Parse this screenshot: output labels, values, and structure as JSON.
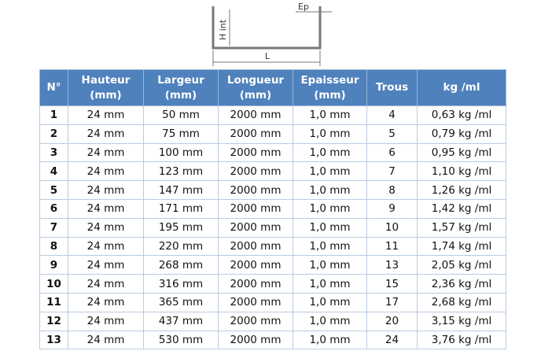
{
  "diagram": {
    "height_label": "H int",
    "length_label": "L",
    "thickness_label": "Ep"
  },
  "table": {
    "header": [
      [
        "N°"
      ],
      [
        "Hauteur",
        "(mm)"
      ],
      [
        "Largeur",
        "(mm)"
      ],
      [
        "Longueur",
        "(mm)"
      ],
      [
        "Epaisseur",
        "(mm)"
      ],
      [
        "Trous"
      ],
      [
        "kg /ml"
      ]
    ],
    "rows": [
      [
        "1",
        "24 mm",
        "50 mm",
        "2000 mm",
        "1,0 mm",
        "4",
        "0,63 kg /ml"
      ],
      [
        "2",
        "24 mm",
        "75 mm",
        "2000 mm",
        "1,0 mm",
        "5",
        "0,79 kg /ml"
      ],
      [
        "3",
        "24 mm",
        "100 mm",
        "2000 mm",
        "1,0 mm",
        "6",
        "0,95 kg /ml"
      ],
      [
        "4",
        "24 mm",
        "123 mm",
        "2000 mm",
        "1,0 mm",
        "7",
        "1,10 kg /ml"
      ],
      [
        "5",
        "24 mm",
        "147 mm",
        "2000 mm",
        "1,0 mm",
        "8",
        "1,26 kg /ml"
      ],
      [
        "6",
        "24 mm",
        "171 mm",
        "2000 mm",
        "1,0 mm",
        "9",
        "1,42 kg /ml"
      ],
      [
        "7",
        "24 mm",
        "195 mm",
        "2000 mm",
        "1,0 mm",
        "10",
        "1,57 kg /ml"
      ],
      [
        "8",
        "24 mm",
        "220 mm",
        "2000 mm",
        "1,0 mm",
        "11",
        "1,74 kg /ml"
      ],
      [
        "9",
        "24 mm",
        "268 mm",
        "2000 mm",
        "1,0 mm",
        "13",
        "2,05 kg /ml"
      ],
      [
        "10",
        "24 mm",
        "316 mm",
        "2000 mm",
        "1,0 mm",
        "15",
        "2,36 kg /ml"
      ],
      [
        "11",
        "24 mm",
        "365 mm",
        "2000 mm",
        "1,0 mm",
        "17",
        "2,68 kg /ml"
      ],
      [
        "12",
        "24 mm",
        "437 mm",
        "2000 mm",
        "1,0 mm",
        "20",
        "3,15 kg /ml"
      ],
      [
        "13",
        "24 mm",
        "530 mm",
        "2000 mm",
        "1,0 mm",
        "24",
        "3,76 kg /ml"
      ]
    ]
  }
}
